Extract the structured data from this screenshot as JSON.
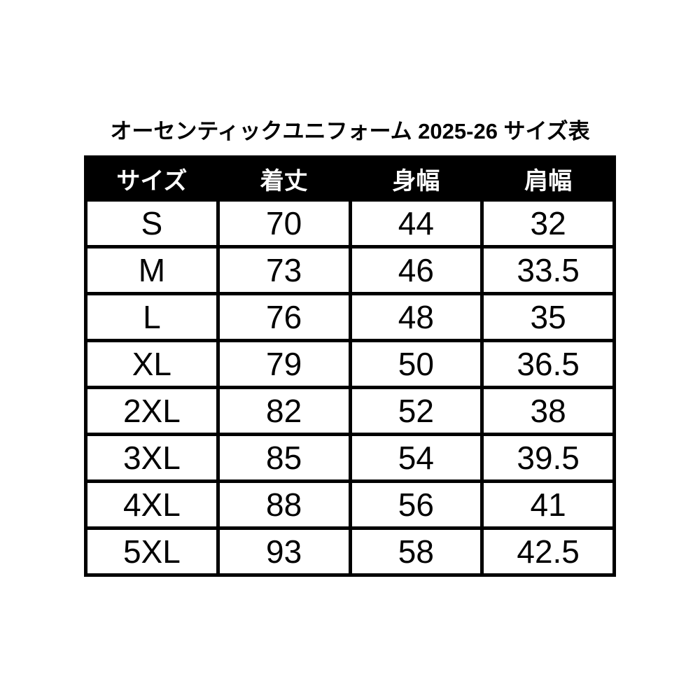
{
  "page": {
    "title": "オーセンティックユニフォーム 2025-26 サイズ表"
  },
  "table": {
    "columns": [
      "サイズ",
      "着丈",
      "身幅",
      "肩幅"
    ],
    "rows": [
      {
        "size": "S",
        "values": [
          "70",
          "44",
          "32"
        ]
      },
      {
        "size": "M",
        "values": [
          "73",
          "46",
          "33.5"
        ]
      },
      {
        "size": "L",
        "values": [
          "76",
          "48",
          "35"
        ]
      },
      {
        "size": "XL",
        "values": [
          "79",
          "50",
          "36.5"
        ]
      },
      {
        "size": "2XL",
        "values": [
          "82",
          "52",
          "38"
        ]
      },
      {
        "size": "3XL",
        "values": [
          "85",
          "54",
          "39.5"
        ]
      },
      {
        "size": "4XL",
        "values": [
          "88",
          "56",
          "41"
        ]
      },
      {
        "size": "5XL",
        "values": [
          "93",
          "58",
          "42.5"
        ]
      }
    ]
  },
  "colors": {
    "background": "#ffffff",
    "header_bg": "#000000",
    "header_text": "#ffffff",
    "body_text": "#000000",
    "border": "#000000"
  },
  "chart_data": {
    "type": "table",
    "title": "オーセンティックユニフォーム 2025-26 サイズ表",
    "columns": [
      "サイズ",
      "着丈",
      "身幅",
      "肩幅"
    ],
    "rows": [
      [
        "S",
        70,
        44,
        32
      ],
      [
        "M",
        73,
        46,
        33.5
      ],
      [
        "L",
        76,
        48,
        35
      ],
      [
        "XL",
        79,
        50,
        36.5
      ],
      [
        "2XL",
        82,
        52,
        38
      ],
      [
        "3XL",
        85,
        54,
        39.5
      ],
      [
        "4XL",
        88,
        56,
        41
      ],
      [
        "5XL",
        93,
        58,
        42.5
      ]
    ]
  }
}
